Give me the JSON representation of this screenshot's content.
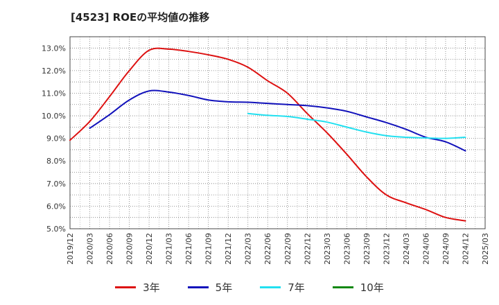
{
  "chart_data": {
    "type": "line",
    "title": "[4523]  ROEの平均値の推移",
    "xlabel": "",
    "ylabel": "",
    "ylim": [
      5.0,
      13.5
    ],
    "yticks": [
      5.0,
      6.0,
      7.0,
      8.0,
      9.0,
      10.0,
      11.0,
      12.0,
      13.0
    ],
    "ytick_labels": [
      "5.0%",
      "6.0%",
      "7.0%",
      "8.0%",
      "9.0%",
      "10.0%",
      "11.0%",
      "12.0%",
      "13.0%"
    ],
    "categories": [
      "2019/12",
      "2020/03",
      "2020/06",
      "2020/09",
      "2020/12",
      "2021/03",
      "2021/06",
      "2021/09",
      "2021/12",
      "2022/03",
      "2022/06",
      "2022/09",
      "2022/12",
      "2023/03",
      "2023/06",
      "2023/09",
      "2023/12",
      "2024/03",
      "2024/06",
      "2024/09",
      "2024/12",
      "2025/03"
    ],
    "grid": true,
    "legend_position": "bottom",
    "series": [
      {
        "name": "3年",
        "color": "#dd1111",
        "values": [
          8.92,
          9.75,
          10.85,
          12.0,
          12.9,
          12.95,
          12.85,
          12.7,
          12.5,
          12.15,
          11.55,
          11.0,
          10.1,
          9.25,
          8.3,
          7.3,
          6.5,
          6.15,
          5.85,
          5.5,
          5.35,
          null
        ]
      },
      {
        "name": "5年",
        "color": "#1111bb",
        "values": [
          null,
          9.45,
          10.05,
          10.7,
          11.1,
          11.05,
          10.9,
          10.7,
          10.62,
          10.6,
          10.55,
          10.5,
          10.45,
          10.35,
          10.2,
          9.95,
          9.7,
          9.4,
          9.05,
          8.85,
          8.45,
          null
        ]
      },
      {
        "name": "7年",
        "color": "#22e0f0",
        "values": [
          null,
          null,
          null,
          null,
          null,
          null,
          null,
          null,
          null,
          10.1,
          10.02,
          9.97,
          9.85,
          9.72,
          9.5,
          9.28,
          9.12,
          9.05,
          9.02,
          9.0,
          9.05,
          null
        ]
      },
      {
        "name": "10年",
        "color": "#118811",
        "values": [
          null,
          null,
          null,
          null,
          null,
          null,
          null,
          null,
          null,
          null,
          null,
          null,
          null,
          null,
          null,
          null,
          null,
          null,
          null,
          null,
          null,
          null
        ]
      }
    ]
  }
}
